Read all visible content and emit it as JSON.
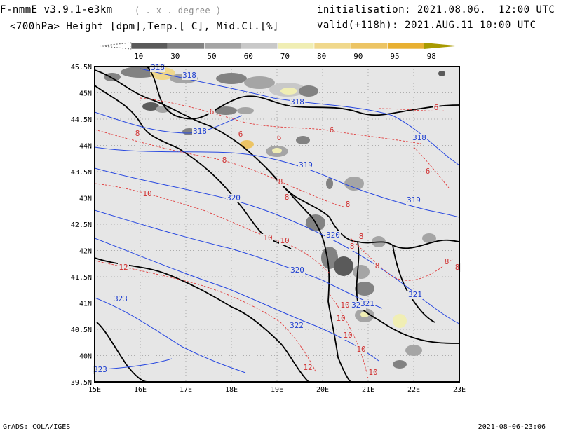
{
  "header": {
    "model": "F-nmmE_v3.9.1-e3km",
    "projection": "( . x . degree )",
    "variables": "<700hPa> Height [dpm],Temp.[ C], Mid.Cl.[%]",
    "init_label": "initialisation:",
    "init_time": "2021.08.06.  12:00 UTC",
    "valid_label": "valid(+118h):",
    "valid_time": "2021.AUG.11 10:00 UTC"
  },
  "colorbar": {
    "labels": [
      "10",
      "30",
      "50",
      "60",
      "70",
      "80",
      "90",
      "95",
      "98"
    ],
    "colors": [
      "#5a5a5a",
      "#828282",
      "#a5a5a5",
      "#c8c8c8",
      "#f0eeb4",
      "#f0d88c",
      "#ecc464",
      "#e8b032",
      "#a89a00"
    ]
  },
  "axes": {
    "lat_labels": [
      "45.5N",
      "45N",
      "44.5N",
      "44N",
      "43.5N",
      "43N",
      "42.5N",
      "42N",
      "41.5N",
      "41N",
      "40.5N",
      "40N",
      "39.5N"
    ],
    "lon_labels": [
      "15E",
      "16E",
      "17E",
      "18E",
      "19E",
      "20E",
      "21E",
      "22E",
      "23E"
    ]
  },
  "map": {
    "background": "#e6e6e6",
    "coast_color": "#000000",
    "height_contour_color": "#2848e0",
    "temp_contour_color": "#e03c3c",
    "height_labels": [
      "318",
      "318",
      "318",
      "318",
      "318",
      "319",
      "319",
      "320",
      "320",
      "320",
      "321",
      "321",
      "321",
      "322",
      "323",
      "323"
    ],
    "temp_labels": [
      "6",
      "6",
      "6",
      "6",
      "6",
      "6",
      "8",
      "8",
      "8",
      "8",
      "8",
      "8",
      "8",
      "8",
      "8",
      "8",
      "10",
      "10",
      "10",
      "10",
      "10",
      "10",
      "10",
      "10",
      "12",
      "12"
    ]
  },
  "footer": {
    "left": "GrADS: COLA/IGES",
    "right": "2021-08-06-23:06"
  }
}
